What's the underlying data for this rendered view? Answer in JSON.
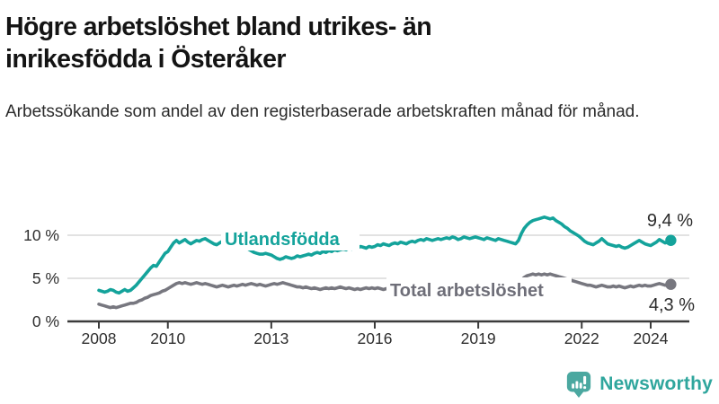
{
  "header": {
    "title": "Högre arbetslöshet bland utrikes- än inrikesfödda i Österåker",
    "subtitle": "Arbetssökande som andel av den registerbaserade arbetskraften månad för månad."
  },
  "chart_data": {
    "type": "line",
    "title": "Högre arbetslöshet bland utrikes- än inrikesfödda i Österåker",
    "x_unit": "month",
    "x_start_year": 2008,
    "x_end_year_fraction": 2024.58,
    "x_tick_years": [
      2008,
      2010,
      2013,
      2016,
      2019,
      2022,
      2024
    ],
    "x_tick_labels": [
      "2008",
      "2010",
      "2013",
      "2016",
      "2019",
      "2022",
      "2024"
    ],
    "y_ticks": [
      {
        "value": 0,
        "label": "0 %"
      },
      {
        "value": 5,
        "label": "5 %"
      },
      {
        "value": 10,
        "label": "10 %"
      }
    ],
    "ylim": [
      0,
      13.8
    ],
    "grid": true,
    "colors": {
      "axis": "#3b3b3b",
      "gridline": "#d8d8d8",
      "tick_text": "#2e2e2e",
      "end_label_text": "#2b2b2b"
    },
    "series": [
      {
        "name": "Utlandsfödda",
        "color": "#14a39b",
        "end_value": 9.4,
        "end_label": "9,4 %",
        "values": [
          3.6,
          3.5,
          3.4,
          3.5,
          3.7,
          3.6,
          3.4,
          3.3,
          3.5,
          3.7,
          3.5,
          3.6,
          3.9,
          4.2,
          4.6,
          5.0,
          5.4,
          5.8,
          6.2,
          6.5,
          6.4,
          6.9,
          7.4,
          7.9,
          8.1,
          8.6,
          9.1,
          9.4,
          9.1,
          9.3,
          9.5,
          9.2,
          9.0,
          9.2,
          9.4,
          9.3,
          9.5,
          9.6,
          9.4,
          9.2,
          9.0,
          8.9,
          9.1,
          9.3,
          9.4,
          9.2,
          9.1,
          9.0,
          9.0,
          8.9,
          8.8,
          8.6,
          8.4,
          8.2,
          8.0,
          7.9,
          7.8,
          7.8,
          7.9,
          7.8,
          7.7,
          7.5,
          7.3,
          7.2,
          7.3,
          7.5,
          7.4,
          7.3,
          7.4,
          7.6,
          7.5,
          7.6,
          7.7,
          7.8,
          7.7,
          7.9,
          8.0,
          7.9,
          8.1,
          8.0,
          8.2,
          8.1,
          8.3,
          8.2,
          8.3,
          8.4,
          8.3,
          8.5,
          8.4,
          8.6,
          8.5,
          8.7,
          8.6,
          8.5,
          8.7,
          8.6,
          8.7,
          8.9,
          8.8,
          9.0,
          8.9,
          8.8,
          9.0,
          9.1,
          9.0,
          9.2,
          9.1,
          9.0,
          9.2,
          9.3,
          9.2,
          9.4,
          9.5,
          9.4,
          9.6,
          9.5,
          9.4,
          9.5,
          9.6,
          9.5,
          9.6,
          9.7,
          9.6,
          9.8,
          9.7,
          9.5,
          9.6,
          9.8,
          9.7,
          9.6,
          9.7,
          9.8,
          9.7,
          9.6,
          9.5,
          9.7,
          9.6,
          9.5,
          9.4,
          9.6,
          9.5,
          9.4,
          9.3,
          9.2,
          9.1,
          9.0,
          9.4,
          10.2,
          10.8,
          11.2,
          11.5,
          11.7,
          11.8,
          11.9,
          12.0,
          12.1,
          12.0,
          11.9,
          12.0,
          11.7,
          11.5,
          11.3,
          11.0,
          10.8,
          10.5,
          10.3,
          10.1,
          9.9,
          9.6,
          9.3,
          9.1,
          9.0,
          8.9,
          9.1,
          9.3,
          9.6,
          9.3,
          9.0,
          8.9,
          8.8,
          8.7,
          8.8,
          8.6,
          8.5,
          8.6,
          8.8,
          9.0,
          9.2,
          9.4,
          9.2,
          9.0,
          8.9,
          8.8,
          9.0,
          9.2,
          9.5,
          9.3,
          9.1,
          9.2,
          9.4
        ]
      },
      {
        "name": "Total arbetslöshet",
        "color": "#77777f",
        "label_color": "#6e6e78",
        "end_value": 4.3,
        "end_label": "4,3 %",
        "values": [
          2.0,
          1.9,
          1.8,
          1.7,
          1.6,
          1.7,
          1.6,
          1.7,
          1.8,
          1.9,
          2.0,
          2.1,
          2.1,
          2.2,
          2.4,
          2.5,
          2.7,
          2.8,
          3.0,
          3.1,
          3.2,
          3.3,
          3.5,
          3.6,
          3.8,
          4.0,
          4.2,
          4.4,
          4.5,
          4.4,
          4.5,
          4.4,
          4.3,
          4.4,
          4.5,
          4.4,
          4.3,
          4.4,
          4.3,
          4.2,
          4.1,
          4.0,
          4.1,
          4.2,
          4.1,
          4.0,
          4.1,
          4.2,
          4.1,
          4.2,
          4.3,
          4.2,
          4.3,
          4.4,
          4.3,
          4.2,
          4.3,
          4.2,
          4.1,
          4.2,
          4.3,
          4.4,
          4.3,
          4.4,
          4.5,
          4.4,
          4.3,
          4.2,
          4.1,
          4.0,
          4.0,
          3.9,
          4.0,
          3.9,
          3.8,
          3.9,
          3.8,
          3.7,
          3.8,
          3.9,
          3.8,
          3.9,
          3.8,
          3.9,
          4.0,
          3.9,
          3.8,
          3.9,
          3.8,
          3.7,
          3.8,
          3.7,
          3.8,
          3.9,
          3.8,
          3.9,
          3.8,
          3.9,
          3.8,
          3.7,
          3.8,
          3.7,
          3.6,
          3.7,
          3.8,
          3.7,
          3.6,
          3.7,
          3.6,
          3.7,
          3.6,
          3.5,
          3.6,
          3.5,
          3.6,
          3.7,
          3.6,
          3.5,
          3.6,
          3.5,
          3.5,
          3.6,
          3.5,
          3.4,
          3.5,
          3.4,
          3.5,
          3.4,
          3.5,
          3.6,
          3.5,
          3.6,
          3.5,
          3.6,
          3.7,
          3.6,
          3.7,
          3.8,
          3.7,
          3.8,
          3.9,
          3.8,
          3.9,
          4.0,
          4.0,
          4.1,
          4.4,
          4.8,
          5.1,
          5.3,
          5.4,
          5.5,
          5.4,
          5.5,
          5.4,
          5.5,
          5.4,
          5.5,
          5.4,
          5.3,
          5.2,
          5.1,
          5.0,
          4.9,
          4.8,
          4.7,
          4.6,
          4.5,
          4.4,
          4.3,
          4.2,
          4.2,
          4.1,
          4.0,
          4.1,
          4.2,
          4.1,
          4.0,
          4.0,
          4.1,
          4.0,
          4.1,
          4.0,
          3.9,
          4.0,
          4.1,
          4.0,
          4.1,
          4.2,
          4.1,
          4.2,
          4.1,
          4.1,
          4.2,
          4.3,
          4.4,
          4.3,
          4.2,
          4.3,
          4.3
        ]
      }
    ],
    "legend_position": "inline-on-line"
  },
  "footer": {
    "brand": "Newsworthy",
    "brand_color": "#2fa69d",
    "logo_icon": "bar-chart-speech-pin-icon",
    "logo_icon_color": "#4ba8a0"
  }
}
